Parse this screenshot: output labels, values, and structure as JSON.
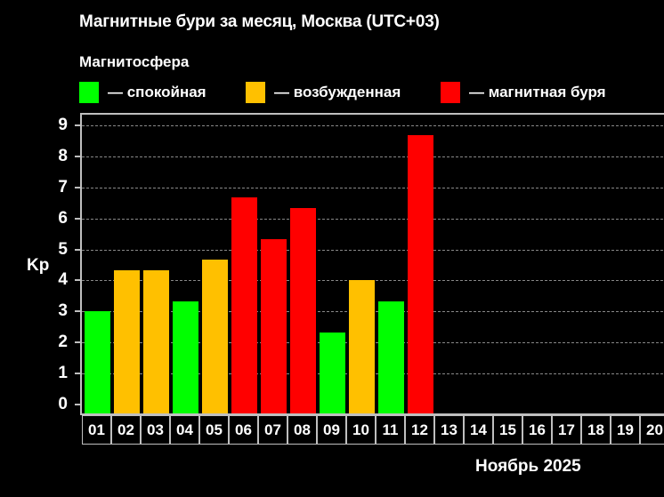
{
  "title": "Магнитные бури за месяц, Москва (UTC+03)",
  "subtitle": "Магнитосфера",
  "legend": [
    {
      "label": "— спокойная",
      "color": "#00ff00",
      "key": "calm"
    },
    {
      "label": "— возбужденная",
      "color": "#ffc000",
      "key": "excited"
    },
    {
      "label": "— магнитная буря",
      "color": "#ff0000",
      "key": "storm"
    }
  ],
  "colors": {
    "calm": "#00ff00",
    "excited": "#ffc000",
    "storm": "#ff0000",
    "axis": "#bfbfbf",
    "grid": "#888888",
    "background": "#000000"
  },
  "chart_data": {
    "type": "bar",
    "title": "Магнитные бури за месяц, Москва (UTC+03)",
    "subtitle": "Магнитосфера",
    "xlabel": "Ноябрь 2025",
    "ylabel": "Kp",
    "ylim": [
      0,
      9
    ],
    "yticks": [
      0,
      1,
      2,
      3,
      4,
      5,
      6,
      7,
      8,
      9
    ],
    "grid": true,
    "legend_position": "top",
    "categories": [
      "01",
      "02",
      "03",
      "04",
      "05",
      "06",
      "07",
      "08",
      "09",
      "10",
      "11",
      "12",
      "13",
      "14",
      "15",
      "16",
      "17",
      "18",
      "19",
      "20"
    ],
    "values": [
      3.0,
      4.33,
      4.33,
      3.33,
      4.67,
      6.67,
      5.33,
      6.33,
      2.33,
      4.0,
      3.33,
      8.67,
      null,
      null,
      null,
      null,
      null,
      null,
      null,
      null
    ],
    "status": [
      "calm",
      "excited",
      "excited",
      "calm",
      "excited",
      "storm",
      "storm",
      "storm",
      "calm",
      "excited",
      "calm",
      "storm",
      null,
      null,
      null,
      null,
      null,
      null,
      null,
      null
    ],
    "legend": [
      "— спокойная",
      "— возбужденная",
      "— магнитная буря"
    ]
  }
}
